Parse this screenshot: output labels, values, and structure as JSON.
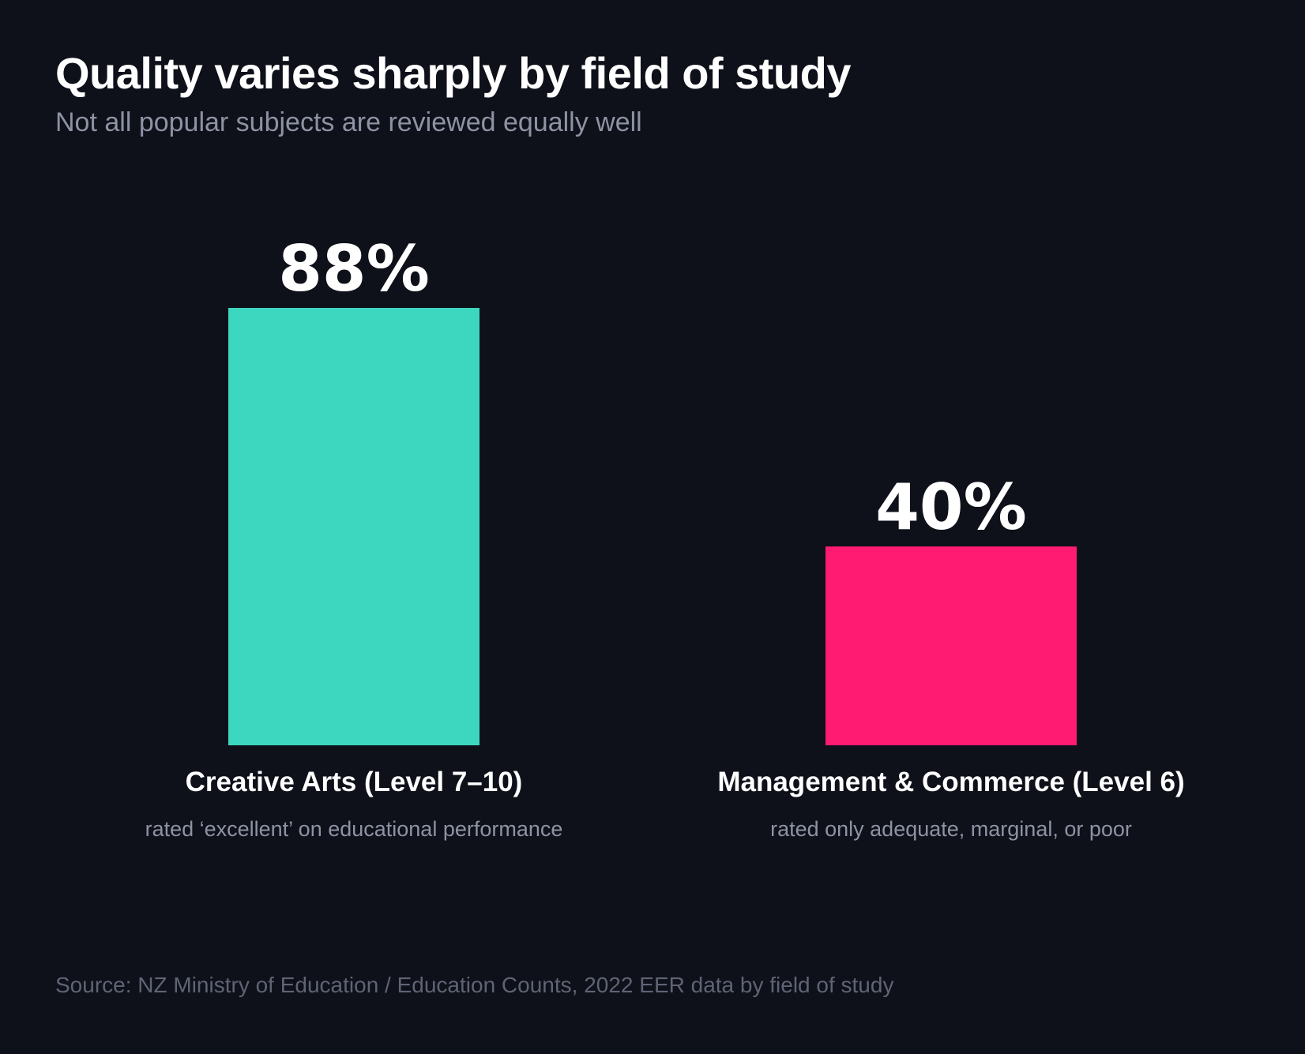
{
  "title": "Quality varies sharply by field of study",
  "subtitle": "Not all popular subjects are reviewed equally well",
  "source": "Source: NZ Ministry of Education / Education Counts, 2022 EER data by field of study",
  "colors": {
    "background": "#0e101a",
    "bar_1": "#3dd6be",
    "bar_2": "#ff1a72",
    "text_primary": "#ffffff",
    "text_secondary": "#8e93a3",
    "text_source": "#5f6474"
  },
  "chart_data": {
    "type": "bar",
    "title": "Quality varies sharply by field of study",
    "subtitle": "Not all popular subjects are reviewed equally well",
    "categories": [
      "Creative Arts (Level 7–10)",
      "Management & Commerce (Level 6)"
    ],
    "values": [
      88,
      40
    ],
    "value_labels": [
      "88%",
      "40%"
    ],
    "notes": [
      "rated ‘excellent’ on educational performance",
      "rated only adequate, marginal, or poor"
    ],
    "bar_colors": [
      "#3dd6be",
      "#ff1a72"
    ],
    "ylim": [
      0,
      88
    ],
    "grid": false,
    "legend": "none",
    "xlabel": "",
    "ylabel": ""
  }
}
